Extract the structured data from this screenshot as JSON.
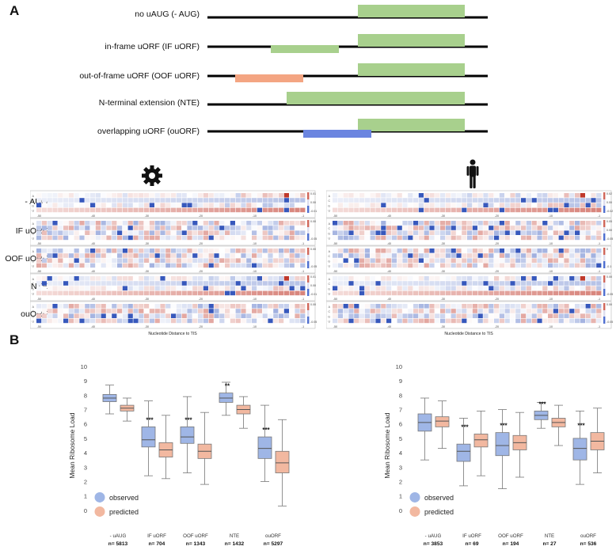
{
  "panel_a": {
    "letter": "A",
    "constructs": [
      {
        "label": "no uAUG (- AUG)",
        "uorf": null
      },
      {
        "label": "in-frame uORF (IF uORF)",
        "uorf": "#a8d08d"
      },
      {
        "label": "out-of-frame uORF (OOF uORF)",
        "uorf": "#f4a582"
      },
      {
        "label": "N-terminal extension (NTE)",
        "uorf": "#a8d08d"
      },
      {
        "label": "overlapping uORF (ouORF)",
        "uorf": "#6b85e0"
      }
    ],
    "cds_color": "#a8d08d",
    "line_color": "#000000"
  },
  "heatmaps": {
    "left_icon": "gear-icon",
    "right_icon": "human-silhouette-icon",
    "row_labels": [
      "- AUG",
      "IF uORF",
      "OOF uORF",
      "NTE",
      "ouORF"
    ],
    "y_ticks": [
      "A",
      "C",
      "G",
      "U"
    ],
    "x_ticks": [
      "-50",
      "-40",
      "-30",
      "-20",
      "-10",
      "-1"
    ],
    "xlabel": "Nucleotide Distance to TIS",
    "left_colorbars": [
      [
        "0.01",
        "0.00",
        "-0.01"
      ],
      [
        "0.00",
        "-0.05"
      ],
      [
        "0.00",
        "-0.05"
      ],
      [
        "0.01",
        "0.00",
        "-0.01"
      ],
      [
        "0.00",
        "-0.05"
      ]
    ],
    "right_colorbars": [
      [
        "0.02",
        "0.00",
        "-0.02"
      ],
      [
        "0.05",
        "0.00",
        "-0.05"
      ],
      [
        "0",
        "-0.1"
      ],
      [
        "0.00",
        "-0.05"
      ],
      [
        "0.00",
        "-0.05"
      ]
    ],
    "colors": {
      "pos": "#c0392b",
      "neg": "#2c4fb8"
    }
  },
  "panel_b": {
    "letter": "B"
  },
  "chart_data": [
    {
      "type": "box",
      "ylabel": "Mean Ribosome Load",
      "ylim": [
        -1,
        10
      ],
      "yticks": [
        "0",
        "1",
        "2",
        "3",
        "4",
        "5",
        "6",
        "7",
        "8",
        "9",
        "10"
      ],
      "categories": [
        "- uAUG",
        "IF uORF",
        "OOF uORF",
        "NTE",
        "ouORF"
      ],
      "counts": [
        "n= 5813",
        "n= 704",
        "n= 1343",
        "n= 1432",
        "n= 5297"
      ],
      "significance": [
        "",
        "***",
        "***",
        "**",
        "***"
      ],
      "legend": [
        "observed",
        "predicted"
      ],
      "legend_colors": [
        "#9fb6e6",
        "#f2b8a0"
      ],
      "series": [
        {
          "name": "observed",
          "boxes": [
            {
              "whislo": 6.7,
              "q1": 7.55,
              "med": 7.8,
              "q3": 8.05,
              "whishi": 8.7
            },
            {
              "whislo": 2.4,
              "q1": 4.4,
              "med": 4.9,
              "q3": 5.8,
              "whishi": 7.6
            },
            {
              "whislo": 2.6,
              "q1": 4.65,
              "med": 5.1,
              "q3": 5.8,
              "whishi": 7.9
            },
            {
              "whislo": 6.6,
              "q1": 7.5,
              "med": 7.8,
              "q3": 8.15,
              "whishi": 8.9
            },
            {
              "whislo": 2.0,
              "q1": 3.6,
              "med": 4.3,
              "q3": 5.1,
              "whishi": 7.3
            }
          ]
        },
        {
          "name": "predicted",
          "boxes": [
            {
              "whislo": 6.2,
              "q1": 6.9,
              "med": 7.1,
              "q3": 7.3,
              "whishi": 7.8
            },
            {
              "whislo": 2.2,
              "q1": 3.7,
              "med": 4.2,
              "q3": 4.7,
              "whishi": 6.6
            },
            {
              "whislo": 1.8,
              "q1": 3.6,
              "med": 4.1,
              "q3": 4.6,
              "whishi": 6.8
            },
            {
              "whislo": 5.7,
              "q1": 6.7,
              "med": 7.0,
              "q3": 7.3,
              "whishi": 7.9
            },
            {
              "whislo": 0.3,
              "q1": 2.6,
              "med": 3.3,
              "q3": 4.1,
              "whishi": 6.3
            }
          ]
        }
      ]
    },
    {
      "type": "box",
      "ylabel": "Mean Ribosome Load",
      "ylim": [
        -1,
        10
      ],
      "yticks": [
        "0",
        "1",
        "2",
        "3",
        "4",
        "5",
        "6",
        "7",
        "8",
        "9",
        "10"
      ],
      "categories": [
        "- uAUG",
        "IF uORF",
        "OOF uORF",
        "NTE",
        "ouORF"
      ],
      "counts": [
        "n= 3853",
        "n= 69",
        "n= 194",
        "n= 27",
        "n= 536"
      ],
      "significance": [
        "",
        "***",
        "***",
        "***",
        "***"
      ],
      "legend": [
        "observed",
        "predicted"
      ],
      "legend_colors": [
        "#9fb6e6",
        "#f2b8a0"
      ],
      "series": [
        {
          "name": "observed",
          "boxes": [
            {
              "whislo": 3.5,
              "q1": 5.5,
              "med": 6.1,
              "q3": 6.7,
              "whishi": 7.8
            },
            {
              "whislo": 1.7,
              "q1": 3.4,
              "med": 4.1,
              "q3": 4.6,
              "whishi": 6.4
            },
            {
              "whislo": 1.5,
              "q1": 3.8,
              "med": 4.5,
              "q3": 5.4,
              "whishi": 7.0
            },
            {
              "whislo": 5.7,
              "q1": 6.3,
              "med": 6.6,
              "q3": 6.9,
              "whishi": 7.5
            },
            {
              "whislo": 1.8,
              "q1": 3.5,
              "med": 4.3,
              "q3": 5.0,
              "whishi": 6.9
            }
          ]
        },
        {
          "name": "predicted",
          "boxes": [
            {
              "whislo": 4.3,
              "q1": 5.8,
              "med": 6.2,
              "q3": 6.5,
              "whishi": 7.6
            },
            {
              "whislo": 2.4,
              "q1": 4.4,
              "med": 4.9,
              "q3": 5.3,
              "whishi": 6.9
            },
            {
              "whislo": 2.3,
              "q1": 4.2,
              "med": 4.7,
              "q3": 5.2,
              "whishi": 6.8
            },
            {
              "whislo": 4.5,
              "q1": 5.8,
              "med": 6.1,
              "q3": 6.4,
              "whishi": 7.3
            },
            {
              "whislo": 2.6,
              "q1": 4.2,
              "med": 4.8,
              "q3": 5.4,
              "whishi": 7.1
            }
          ]
        }
      ]
    }
  ]
}
